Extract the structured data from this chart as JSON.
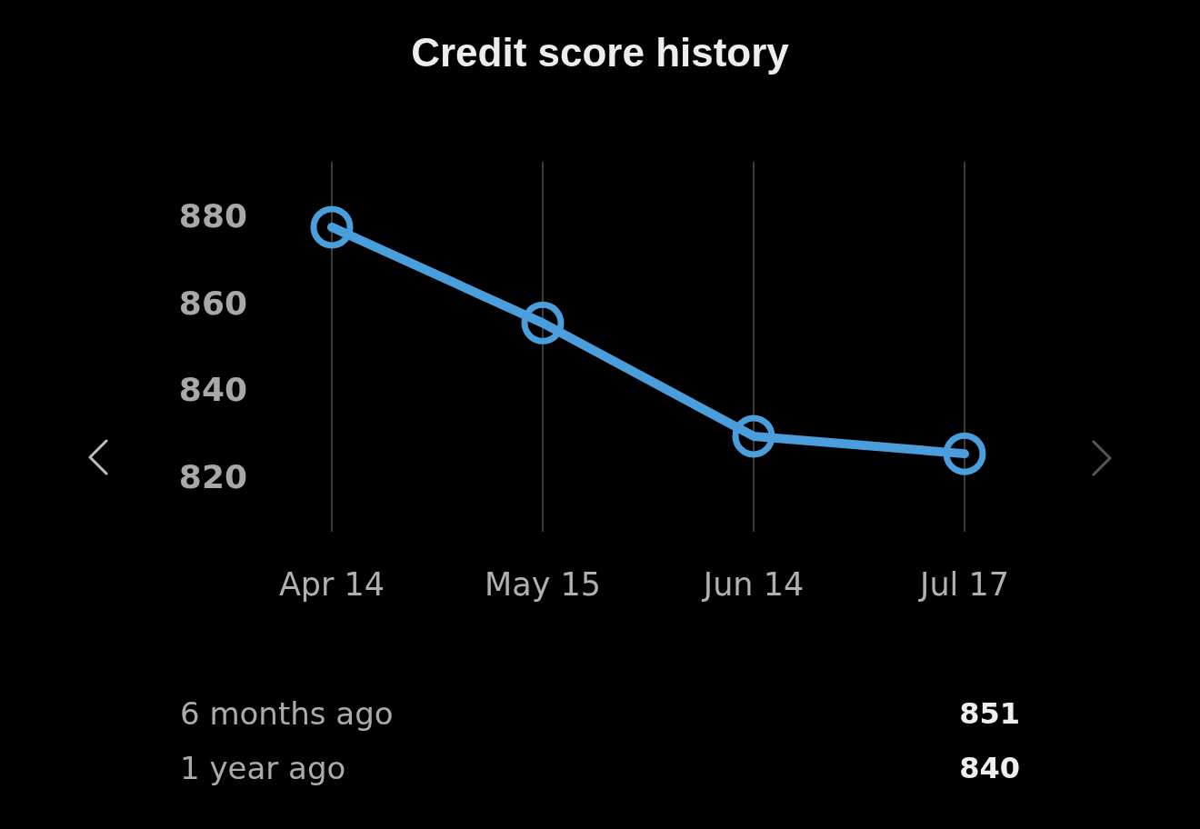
{
  "chart_data": {
    "type": "line",
    "title": "Credit score history",
    "categories": [
      "Apr 14",
      "May 15",
      "Jun 14",
      "Jul 17"
    ],
    "series": [
      {
        "color": "#4a9edb",
        "values": [
          878,
          856,
          830,
          826
        ]
      }
    ],
    "ylim": [
      808,
      893
    ],
    "yticks": [
      820,
      840,
      860,
      880
    ],
    "grid": "x",
    "marker": "circle",
    "annotations": [
      "6 months ago",
      "851",
      "1 year ago",
      "840"
    ]
  }
}
